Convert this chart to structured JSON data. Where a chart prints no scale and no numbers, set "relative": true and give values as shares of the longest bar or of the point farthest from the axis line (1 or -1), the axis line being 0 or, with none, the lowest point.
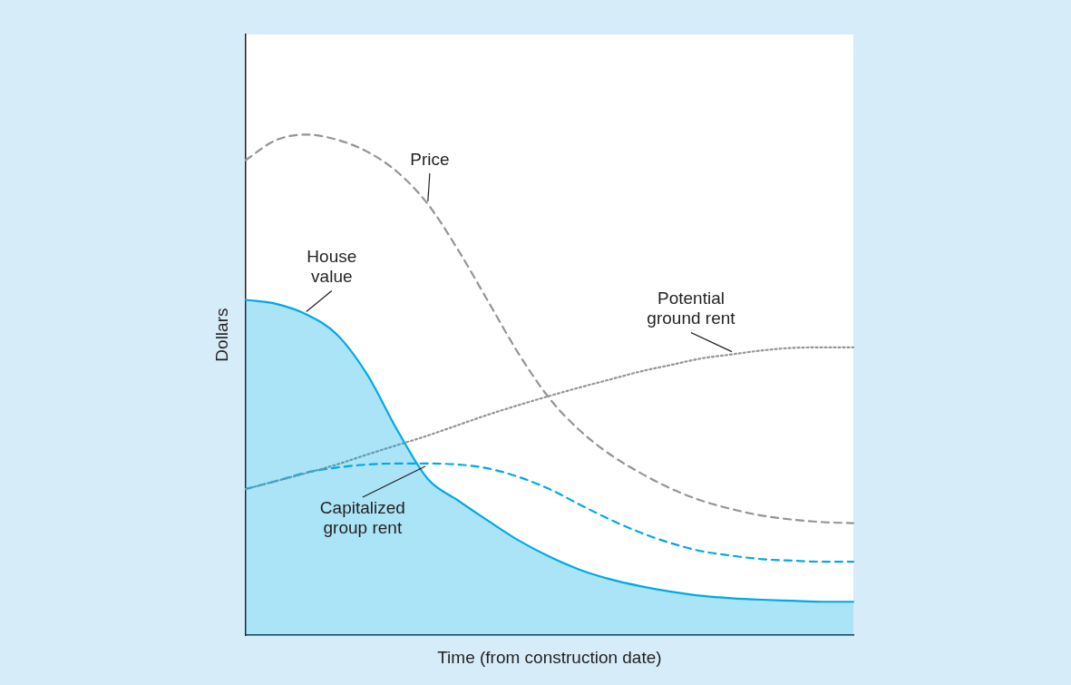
{
  "chart_data": {
    "type": "line",
    "relative": true,
    "xlabel": "Time (from construction date)",
    "ylabel": "Dollars",
    "legend": false,
    "grid": false,
    "categories": [
      null,
      null,
      null,
      null,
      null,
      null,
      null,
      null,
      null,
      null,
      null,
      null,
      null,
      null,
      null,
      null,
      null,
      null,
      null,
      null,
      null
    ],
    "series": [
      {
        "name": "Price",
        "color": "#939598",
        "line_style": "dashed",
        "values": [
          0.949,
          0.989,
          1.0,
          0.99,
          0.966,
          0.925,
          0.861,
          0.769,
          0.665,
          0.561,
          0.473,
          0.409,
          0.361,
          0.324,
          0.293,
          0.269,
          0.252,
          0.239,
          0.231,
          0.226,
          0.224
        ]
      },
      {
        "name": "House value",
        "type": "area",
        "color": "#00a9e8",
        "line_style": "solid",
        "values": [
          0.67,
          0.662,
          0.641,
          0.601,
          0.521,
          0.409,
          0.312,
          0.269,
          0.228,
          0.189,
          0.157,
          0.131,
          0.112,
          0.098,
          0.087,
          0.079,
          0.074,
          0.071,
          0.069,
          0.067,
          0.067
        ]
      },
      {
        "name": "Potential ground rent",
        "color": "#939598",
        "line_style": "dotted",
        "values": [
          0.292,
          0.308,
          0.324,
          0.341,
          0.361,
          0.38,
          0.399,
          0.42,
          0.441,
          0.46,
          0.478,
          0.495,
          0.511,
          0.527,
          0.54,
          0.553,
          0.561,
          0.569,
          0.574,
          0.575,
          0.575
        ]
      },
      {
        "name": "Capitalized group rent",
        "color": "#00a9e8",
        "line_style": "dashed",
        "values": [
          0.292,
          0.308,
          0.325,
          0.335,
          0.341,
          0.343,
          0.343,
          0.341,
          0.333,
          0.316,
          0.292,
          0.261,
          0.231,
          0.205,
          0.184,
          0.168,
          0.159,
          0.152,
          0.149,
          0.147,
          0.147
        ]
      }
    ]
  }
}
